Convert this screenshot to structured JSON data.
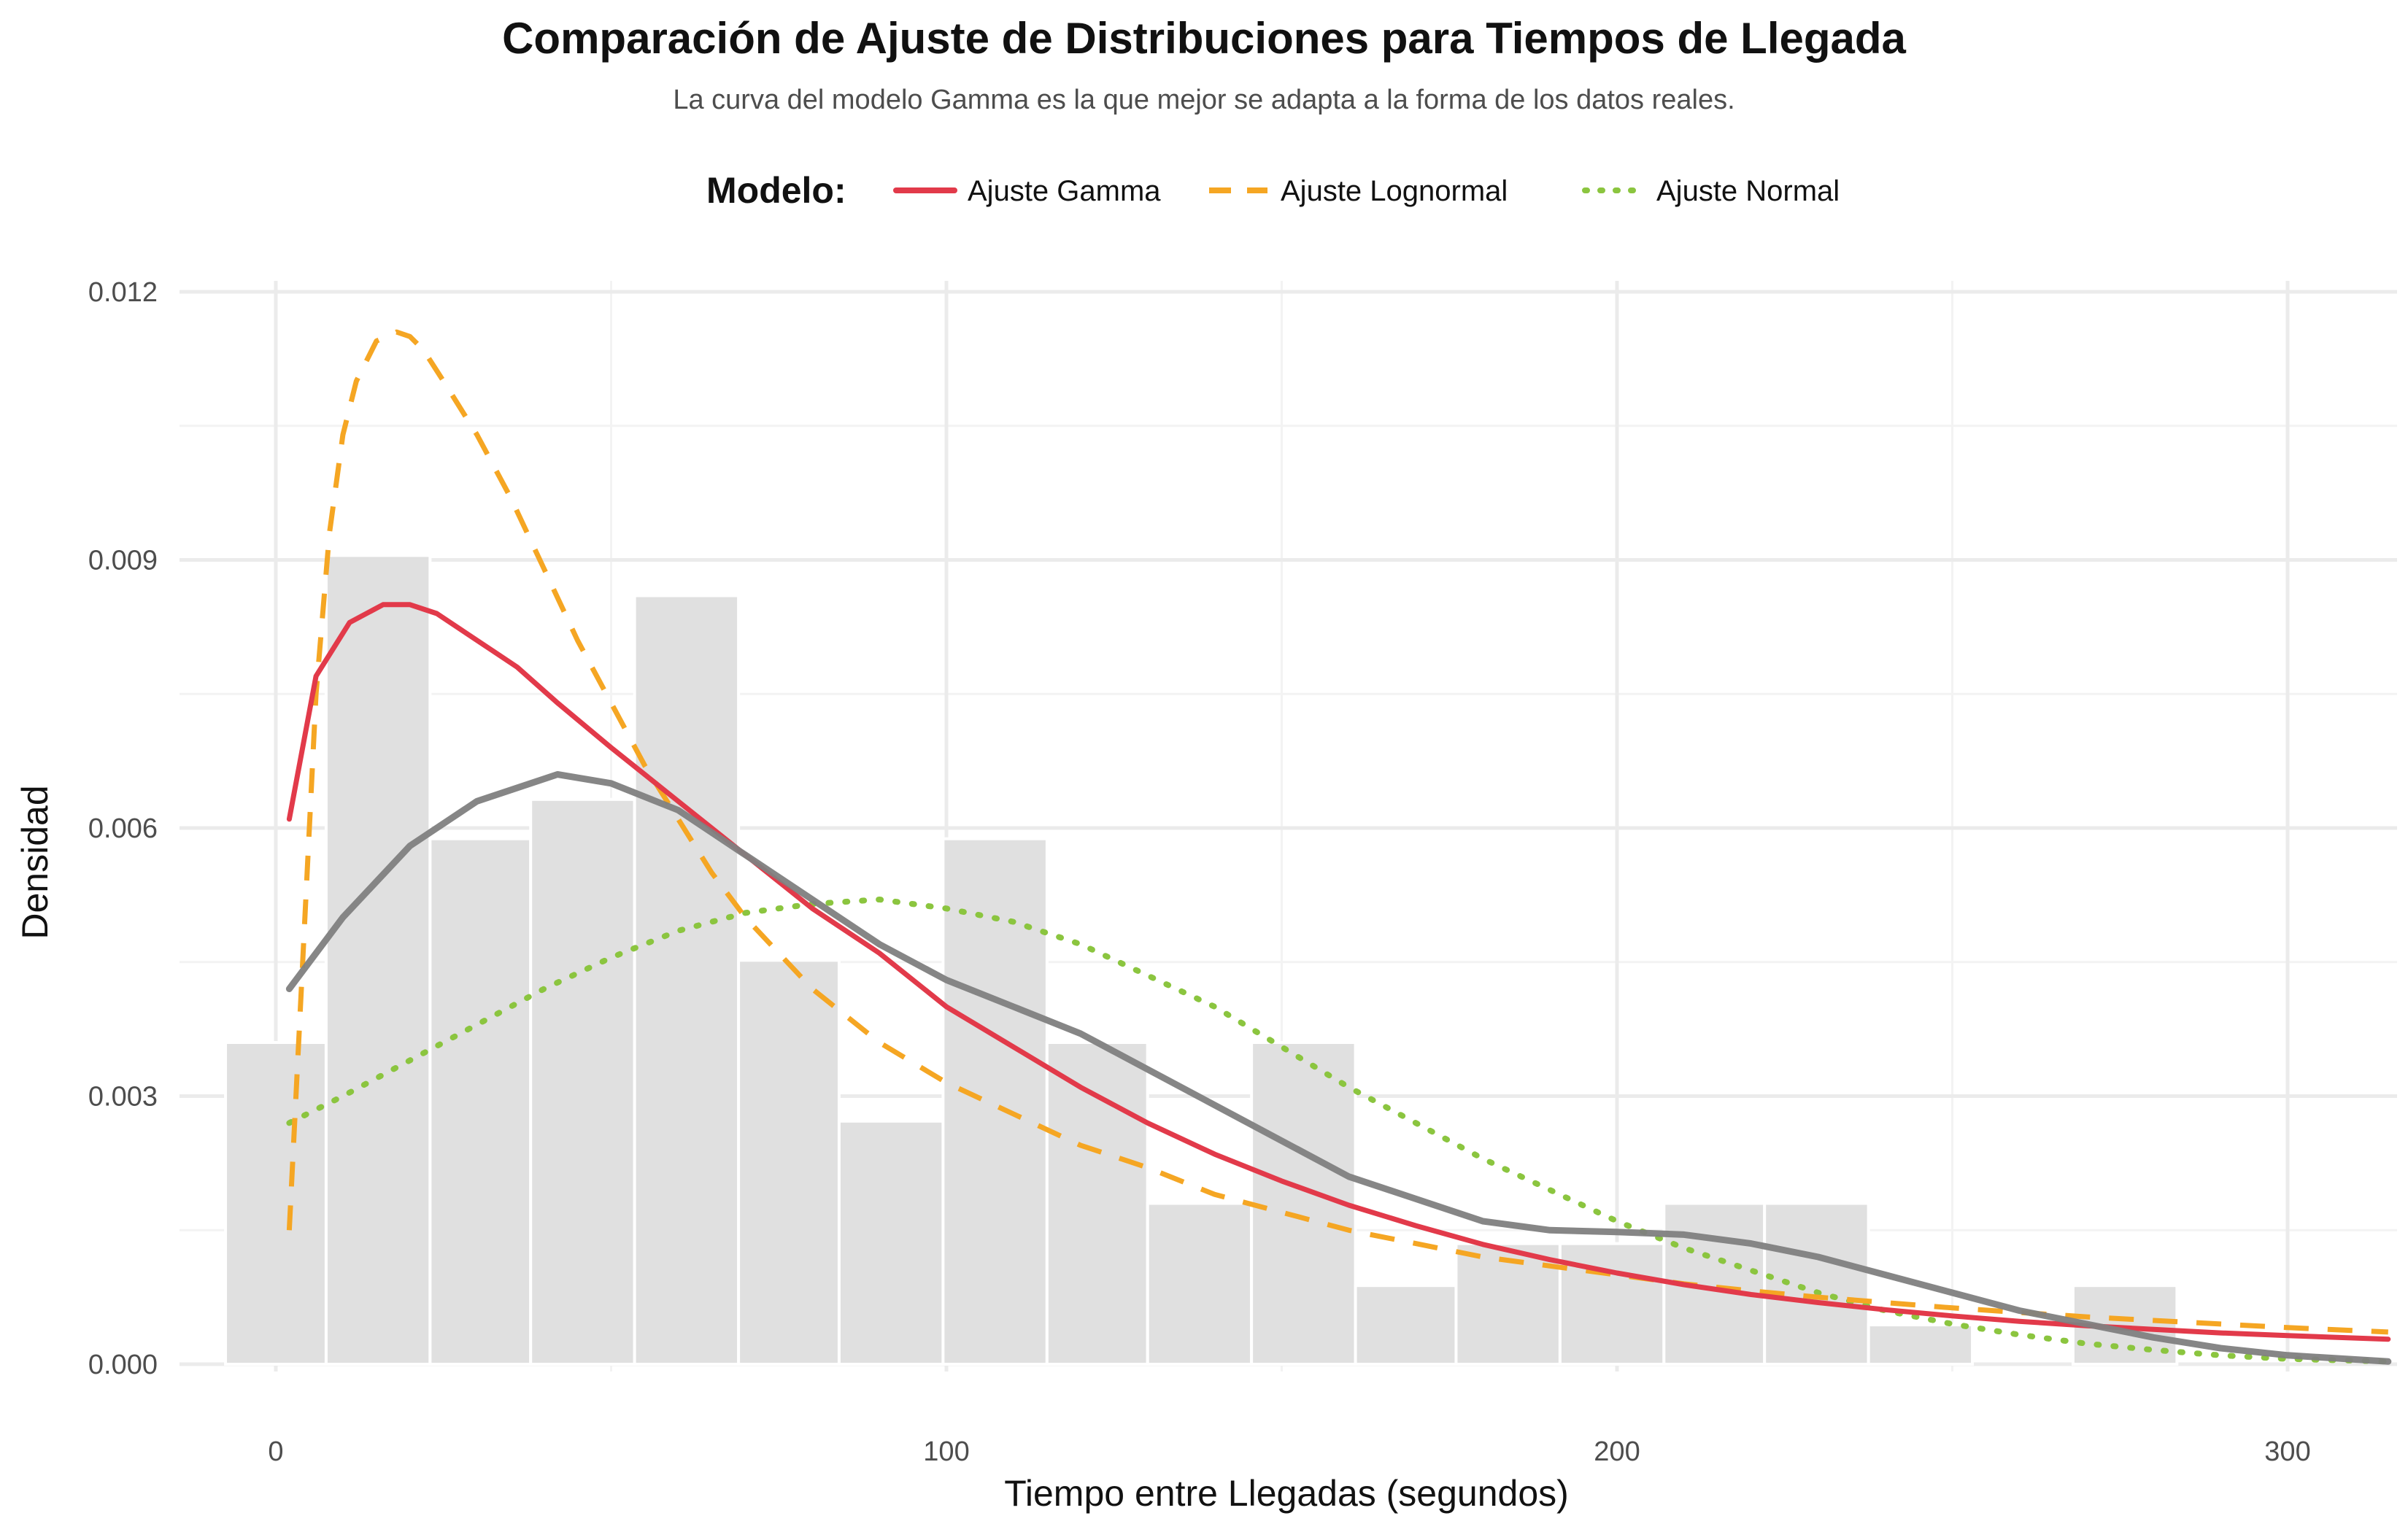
{
  "chart_data": {
    "type": "histogram",
    "title": "Comparación de Ajuste de Distribuciones para Tiempos de Llegada",
    "subtitle": "La curva del modelo Gamma es la que mejor se adapta a la forma de los datos reales.",
    "xlabel": "Tiempo entre Llegadas (segundos)",
    "ylabel": "Densidad",
    "xlim": [
      -15,
      315
    ],
    "ylim": [
      0,
      0.012
    ],
    "x_ticks": [
      0,
      100,
      200,
      300
    ],
    "x_tick_labels": [
      "0",
      "100",
      "200",
      "300"
    ],
    "y_ticks": [
      0,
      0.003,
      0.006,
      0.009,
      0.012
    ],
    "y_tick_labels": [
      "0.000",
      "0.003",
      "0.006",
      "0.009",
      "0.012"
    ],
    "grid": true,
    "legend": {
      "title": "Modelo:",
      "position": "top"
    },
    "histogram": {
      "color": "#e0e0e0",
      "bins": [
        {
          "x0": -7.5,
          "x1": 7.5,
          "density": 0.0036
        },
        {
          "x0": 7.5,
          "x1": 23,
          "density": 0.00905
        },
        {
          "x0": 23,
          "x1": 38,
          "density": 0.00588
        },
        {
          "x0": 38,
          "x1": 53.5,
          "density": 0.00632
        },
        {
          "x0": 53.5,
          "x1": 69,
          "density": 0.0086
        },
        {
          "x0": 69,
          "x1": 84,
          "density": 0.00452
        },
        {
          "x0": 84,
          "x1": 99.5,
          "density": 0.00272
        },
        {
          "x0": 99.5,
          "x1": 115,
          "density": 0.00588
        },
        {
          "x0": 115,
          "x1": 130,
          "density": 0.0036
        },
        {
          "x0": 130,
          "x1": 145.5,
          "density": 0.0018
        },
        {
          "x0": 145.5,
          "x1": 161,
          "density": 0.0036
        },
        {
          "x0": 161,
          "x1": 176,
          "density": 0.00088
        },
        {
          "x0": 176,
          "x1": 191.5,
          "density": 0.00135
        },
        {
          "x0": 191.5,
          "x1": 207,
          "density": 0.00135
        },
        {
          "x0": 207,
          "x1": 222,
          "density": 0.0018
        },
        {
          "x0": 222,
          "x1": 237.5,
          "density": 0.0018
        },
        {
          "x0": 237.5,
          "x1": 253,
          "density": 0.00044
        },
        {
          "x0": 253,
          "x1": 268,
          "density": 0.0
        },
        {
          "x0": 268,
          "x1": 283.5,
          "density": 0.00088
        }
      ]
    },
    "kde": {
      "color": "#808080",
      "x": [
        2,
        10,
        20,
        30,
        42,
        50,
        60,
        70,
        80,
        90,
        100,
        110,
        120,
        130,
        140,
        150,
        160,
        170,
        180,
        190,
        200,
        210,
        220,
        230,
        240,
        250,
        260,
        270,
        280,
        290,
        300,
        315
      ],
      "y": [
        0.0042,
        0.005,
        0.0058,
        0.0063,
        0.0066,
        0.0065,
        0.0062,
        0.0057,
        0.0052,
        0.0047,
        0.0043,
        0.004,
        0.0037,
        0.0033,
        0.0029,
        0.0025,
        0.0021,
        0.00185,
        0.0016,
        0.0015,
        0.00148,
        0.00145,
        0.00135,
        0.0012,
        0.001,
        0.0008,
        0.0006,
        0.00045,
        0.0003,
        0.00018,
        0.0001,
        3e-05
      ]
    },
    "series": [
      {
        "name": "Ajuste Gamma",
        "color": "#e23a4a",
        "dash": "solid",
        "x": [
          2,
          6,
          11,
          16,
          20,
          24,
          28,
          32,
          36,
          42,
          50,
          60,
          70,
          80,
          90,
          100,
          110,
          120,
          130,
          140,
          150,
          160,
          170,
          180,
          190,
          200,
          210,
          220,
          230,
          240,
          250,
          260,
          270,
          280,
          290,
          300,
          315
        ],
        "y": [
          0.0061,
          0.0077,
          0.0083,
          0.0085,
          0.0085,
          0.0084,
          0.0082,
          0.008,
          0.0078,
          0.0074,
          0.0069,
          0.0063,
          0.0057,
          0.0051,
          0.0046,
          0.004,
          0.00355,
          0.0031,
          0.0027,
          0.00235,
          0.00205,
          0.00178,
          0.00155,
          0.00134,
          0.00117,
          0.00102,
          0.00089,
          0.00078,
          0.00069,
          0.00061,
          0.00054,
          0.00048,
          0.00043,
          0.00039,
          0.00035,
          0.00032,
          0.00028
        ]
      },
      {
        "name": "Ajuste Lognormal",
        "color": "#f5a623",
        "dash": "dashed",
        "x": [
          2,
          4,
          6,
          8,
          10,
          12,
          15,
          18,
          20,
          22,
          25,
          30,
          35,
          40,
          45,
          50,
          55,
          60,
          65,
          70,
          80,
          90,
          100,
          110,
          120,
          130,
          140,
          150,
          160,
          170,
          180,
          190,
          200,
          210,
          220,
          230,
          240,
          250,
          260,
          270,
          280,
          290,
          300,
          315
        ],
        "y": [
          0.0015,
          0.0045,
          0.0075,
          0.0093,
          0.0104,
          0.011,
          0.01145,
          0.01155,
          0.0115,
          0.01135,
          0.011,
          0.0104,
          0.0097,
          0.0089,
          0.0081,
          0.0074,
          0.0067,
          0.0061,
          0.0055,
          0.005,
          0.0042,
          0.0036,
          0.00315,
          0.0028,
          0.00245,
          0.0022,
          0.0019,
          0.0017,
          0.0015,
          0.00135,
          0.0012,
          0.0011,
          0.001,
          0.0009,
          0.00082,
          0.00075,
          0.00069,
          0.00063,
          0.00058,
          0.00053,
          0.00049,
          0.00045,
          0.00041,
          0.00036
        ]
      },
      {
        "name": "Ajuste Normal",
        "color": "#8bc53f",
        "dash": "dotted",
        "x": [
          2,
          10,
          20,
          30,
          40,
          50,
          60,
          70,
          80,
          90,
          100,
          110,
          120,
          130,
          140,
          150,
          160,
          170,
          180,
          190,
          200,
          210,
          220,
          230,
          240,
          250,
          260,
          270,
          280,
          290,
          300,
          315
        ],
        "y": [
          0.0027,
          0.003,
          0.0034,
          0.0038,
          0.0042,
          0.00455,
          0.00485,
          0.00505,
          0.00515,
          0.0052,
          0.0051,
          0.00495,
          0.0047,
          0.00435,
          0.004,
          0.00355,
          0.0031,
          0.0027,
          0.0023,
          0.00195,
          0.0016,
          0.0013,
          0.00105,
          0.0008,
          0.0006,
          0.00045,
          0.00033,
          0.00023,
          0.00016,
          0.0001,
          6e-05,
          3e-05
        ]
      }
    ]
  }
}
